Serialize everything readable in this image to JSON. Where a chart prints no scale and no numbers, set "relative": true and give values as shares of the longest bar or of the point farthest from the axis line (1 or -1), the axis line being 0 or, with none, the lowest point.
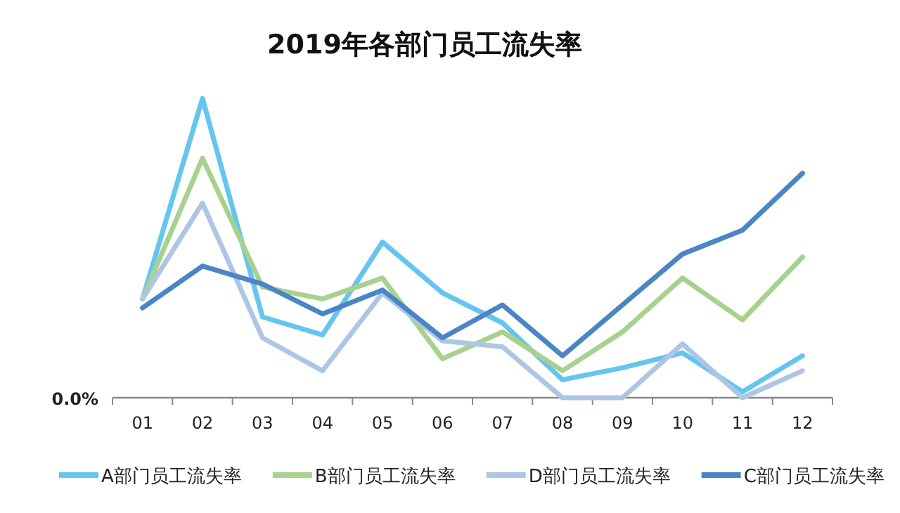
{
  "chart_data": {
    "type": "line",
    "title": "2019年各部门员工流失率",
    "relative": true,
    "legend": "bottom",
    "annotations": [
      "0.0%"
    ],
    "categories": [
      "01",
      "02",
      "03",
      "04",
      "05",
      "06",
      "07",
      "08",
      "09",
      "10",
      "11",
      "12"
    ],
    "series": [
      {
        "name": "A部门员工流失率",
        "color": "#63c5f0",
        "values": [
          0.33,
          1,
          0.27,
          0.21,
          0.52,
          0.35,
          0.25,
          0.06,
          0.1,
          0.15,
          0.02,
          0.14
        ]
      },
      {
        "name": "B部门员工流失率",
        "color": "#a9d18e",
        "values": [
          0.33,
          0.8,
          0.37,
          0.33,
          0.4,
          0.13,
          0.22,
          0.09,
          0.22,
          0.4,
          0.26,
          0.47
        ]
      },
      {
        "name": "D部门员工流失率",
        "color": "#adc6e4",
        "values": [
          0.33,
          0.65,
          0.2,
          0.09,
          0.35,
          0.19,
          0.17,
          0,
          0,
          0.18,
          0,
          0.09
        ]
      },
      {
        "name": "C部门员工流失率",
        "color": "#4a86c5",
        "values": [
          0.3,
          0.44,
          0.38,
          0.28,
          0.36,
          0.2,
          0.31,
          0.14,
          0.31,
          0.48,
          0.56,
          0.75
        ]
      }
    ]
  }
}
